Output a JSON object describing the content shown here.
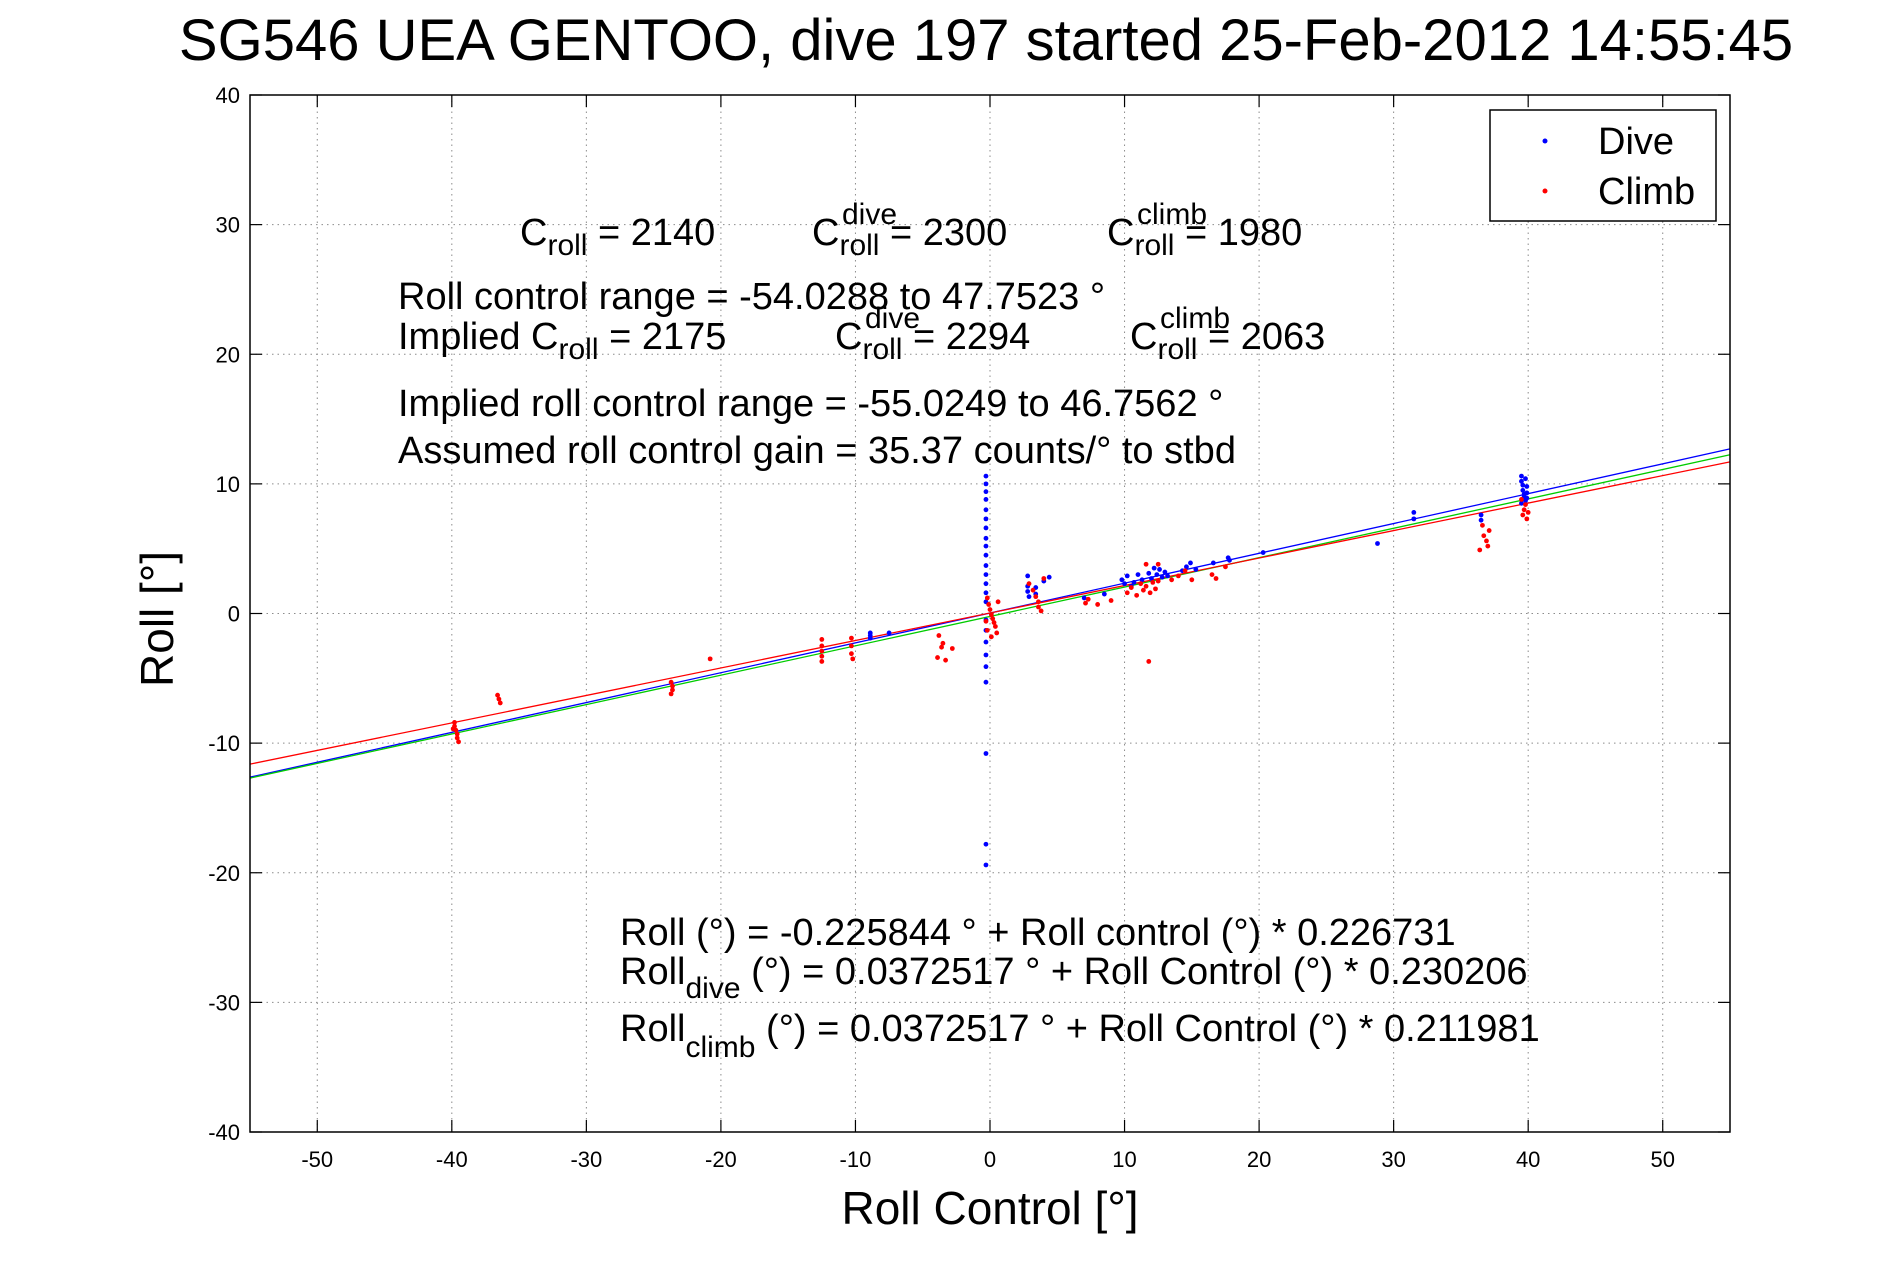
{
  "chart_data": {
    "type": "scatter",
    "title": "SG546 UEA GENTOO, dive 197 started 25-Feb-2012 14:55:45",
    "xlabel": "Roll Control [°]",
    "ylabel": "Roll [°]",
    "xlim": [
      -55,
      55
    ],
    "ylim": [
      -40,
      40
    ],
    "xticks": [
      -50,
      -40,
      -30,
      -20,
      -10,
      0,
      10,
      20,
      30,
      40,
      50
    ],
    "yticks": [
      -40,
      -30,
      -20,
      -10,
      0,
      10,
      20,
      30,
      40
    ],
    "grid": true,
    "legend": {
      "position": "top-right",
      "entries": [
        {
          "label": "Dive",
          "color": "#0000ff"
        },
        {
          "label": "Climb",
          "color": "#ff0000"
        }
      ]
    },
    "annotations": {
      "c_roll": {
        "base": "C",
        "sub": "roll",
        "rest": " = 2140"
      },
      "c_roll_dive": {
        "base": "C",
        "sub": "roll",
        "sup": "dive",
        "rest": " = 2300"
      },
      "c_roll_climb": {
        "base": "C",
        "sub": "roll",
        "sup": "climb",
        "rest": " = 1980"
      },
      "range": "Roll control range = -54.0288 to 47.7523 °",
      "implied_c_roll": {
        "base": "Implied C",
        "sub": "roll",
        "rest": " = 2175"
      },
      "implied_c_roll_dive": {
        "base": "C",
        "sub": "roll",
        "sup": "dive",
        "rest": " = 2294"
      },
      "implied_c_roll_climb": {
        "base": "C",
        "sub": "roll",
        "sup": "climb",
        "rest": " = 2063"
      },
      "implied_range": "Implied roll control range = -55.0249 to 46.7562 °",
      "gain": "Assumed roll control gain = 35.37 counts/° to stbd",
      "fit_all": "Roll (°) = -0.225844 ° + Roll control (°) * 0.226731",
      "fit_dive": {
        "base": "Roll",
        "sub": "dive",
        "rest": " (°) = 0.0372517 ° + Roll Control (°) * 0.230206"
      },
      "fit_climb": {
        "base": "Roll",
        "sub": "climb",
        "rest": " (°) = 0.0372517 ° + Roll Control (°) * 0.211981"
      }
    },
    "fit_lines": [
      {
        "name": "dive",
        "color": "#0000ff",
        "intercept": 0.0372517,
        "slope": 0.230206
      },
      {
        "name": "all",
        "color": "#00cc00",
        "intercept": -0.225844,
        "slope": 0.226731
      },
      {
        "name": "climb",
        "color": "#ff0000",
        "intercept": 0.0372517,
        "slope": 0.211981
      }
    ],
    "series": [
      {
        "name": "Dive",
        "color": "#0000ff",
        "points": [
          [
            -0.3,
            10.6
          ],
          [
            -0.3,
            10.0
          ],
          [
            -0.3,
            9.4
          ],
          [
            -0.3,
            8.8
          ],
          [
            -0.3,
            8.0
          ],
          [
            -0.3,
            7.3
          ],
          [
            -0.3,
            6.6
          ],
          [
            -0.3,
            5.8
          ],
          [
            -0.3,
            5.2
          ],
          [
            -0.3,
            4.5
          ],
          [
            -0.3,
            3.7
          ],
          [
            -0.3,
            3.0
          ],
          [
            -0.3,
            2.3
          ],
          [
            -0.3,
            1.6
          ],
          [
            -0.3,
            0.9
          ],
          [
            -0.3,
            -0.5
          ],
          [
            -0.3,
            -1.3
          ],
          [
            -0.3,
            -2.2
          ],
          [
            -0.3,
            -3.2
          ],
          [
            -0.3,
            -4.1
          ],
          [
            -0.3,
            -5.3
          ],
          [
            -0.3,
            -10.8
          ],
          [
            -0.3,
            -17.8
          ],
          [
            -0.3,
            -19.4
          ],
          [
            -8.9,
            -1.5
          ],
          [
            -8.9,
            -1.7
          ],
          [
            -8.9,
            -1.9
          ],
          [
            -7.5,
            -1.5
          ],
          [
            2.8,
            2.9
          ],
          [
            2.8,
            2.1
          ],
          [
            2.8,
            1.7
          ],
          [
            2.9,
            1.3
          ],
          [
            3.4,
            2.0
          ],
          [
            3.4,
            1.5
          ],
          [
            4.0,
            2.5
          ],
          [
            4.4,
            2.8
          ],
          [
            7.0,
            1.2
          ],
          [
            8.5,
            1.5
          ],
          [
            9.8,
            2.6
          ],
          [
            10.0,
            2.3
          ],
          [
            10.2,
            2.9
          ],
          [
            10.5,
            2.1
          ],
          [
            10.7,
            2.4
          ],
          [
            11.0,
            3.0
          ],
          [
            11.3,
            2.6
          ],
          [
            11.8,
            3.1
          ],
          [
            12.0,
            2.7
          ],
          [
            12.2,
            3.5
          ],
          [
            12.4,
            3.0
          ],
          [
            12.6,
            3.4
          ],
          [
            12.8,
            2.8
          ],
          [
            13.0,
            3.2
          ],
          [
            13.2,
            2.9
          ],
          [
            14.3,
            3.3
          ],
          [
            14.6,
            3.6
          ],
          [
            14.9,
            3.9
          ],
          [
            15.3,
            3.4
          ],
          [
            16.6,
            3.9
          ],
          [
            17.7,
            4.3
          ],
          [
            17.8,
            4.1
          ],
          [
            20.3,
            4.7
          ],
          [
            28.8,
            5.4
          ],
          [
            31.5,
            7.3
          ],
          [
            31.5,
            7.8
          ],
          [
            36.5,
            7.2
          ],
          [
            36.5,
            7.6
          ],
          [
            39.5,
            10.6
          ],
          [
            39.5,
            10.2
          ],
          [
            39.6,
            9.9
          ],
          [
            39.6,
            9.5
          ],
          [
            39.7,
            9.2
          ],
          [
            39.7,
            9.0
          ],
          [
            39.8,
            8.7
          ],
          [
            39.8,
            10.4
          ],
          [
            39.9,
            9.8
          ],
          [
            39.9,
            9.3
          ],
          [
            39.9,
            8.9
          ],
          [
            39.5,
            8.5
          ]
        ]
      },
      {
        "name": "Climb",
        "color": "#ff0000",
        "points": [
          [
            -39.8,
            -8.4
          ],
          [
            -39.8,
            -8.7
          ],
          [
            -39.7,
            -9.0
          ],
          [
            -39.6,
            -9.3
          ],
          [
            -39.6,
            -9.6
          ],
          [
            -39.5,
            -9.9
          ],
          [
            -39.9,
            -8.9
          ],
          [
            -36.6,
            -6.3
          ],
          [
            -36.5,
            -6.6
          ],
          [
            -36.4,
            -6.9
          ],
          [
            -23.7,
            -5.3
          ],
          [
            -23.6,
            -5.6
          ],
          [
            -23.6,
            -5.9
          ],
          [
            -23.7,
            -6.2
          ],
          [
            -20.8,
            -3.5
          ],
          [
            -12.5,
            -2.0
          ],
          [
            -12.5,
            -2.5
          ],
          [
            -12.5,
            -2.9
          ],
          [
            -12.5,
            -3.3
          ],
          [
            -12.5,
            -3.7
          ],
          [
            -10.3,
            -1.9
          ],
          [
            -10.3,
            -2.5
          ],
          [
            -10.3,
            -3.1
          ],
          [
            -10.2,
            -3.5
          ],
          [
            -3.8,
            -1.7
          ],
          [
            -3.5,
            -2.3
          ],
          [
            -3.9,
            -3.4
          ],
          [
            -3.3,
            -3.6
          ],
          [
            -2.8,
            -2.7
          ],
          [
            -3.6,
            -2.6
          ],
          [
            -0.2,
            1.2
          ],
          [
            -0.1,
            0.7
          ],
          [
            0.0,
            0.3
          ],
          [
            0.1,
            -0.1
          ],
          [
            0.2,
            -0.4
          ],
          [
            0.3,
            -0.7
          ],
          [
            0.4,
            -1.0
          ],
          [
            0.5,
            -1.5
          ],
          [
            0.6,
            0.9
          ],
          [
            -0.3,
            -0.6
          ],
          [
            -0.2,
            -1.3
          ],
          [
            0.1,
            -1.8
          ],
          [
            2.9,
            2.3
          ],
          [
            3.2,
            1.8
          ],
          [
            3.4,
            1.3
          ],
          [
            3.6,
            0.5
          ],
          [
            3.6,
            0.9
          ],
          [
            3.8,
            0.2
          ],
          [
            4.0,
            2.7
          ],
          [
            7.1,
            0.8
          ],
          [
            7.3,
            1.1
          ],
          [
            8.0,
            0.7
          ],
          [
            9.0,
            1.0
          ],
          [
            10.2,
            1.6
          ],
          [
            10.5,
            2.0
          ],
          [
            10.9,
            1.4
          ],
          [
            11.2,
            2.3
          ],
          [
            11.4,
            1.8
          ],
          [
            11.6,
            2.1
          ],
          [
            11.9,
            1.6
          ],
          [
            12.1,
            2.4
          ],
          [
            12.3,
            1.9
          ],
          [
            12.5,
            2.5
          ],
          [
            11.8,
            -3.7
          ],
          [
            11.6,
            3.8
          ],
          [
            12.5,
            3.8
          ],
          [
            13.5,
            2.6
          ],
          [
            14.0,
            2.9
          ],
          [
            14.5,
            3.3
          ],
          [
            15.0,
            2.6
          ],
          [
            16.5,
            3.0
          ],
          [
            16.8,
            2.7
          ],
          [
            17.5,
            3.6
          ],
          [
            36.7,
            6.0
          ],
          [
            36.9,
            5.6
          ],
          [
            37.0,
            5.2
          ],
          [
            36.4,
            4.9
          ],
          [
            37.1,
            6.4
          ],
          [
            36.6,
            6.8
          ],
          [
            39.6,
            7.6
          ],
          [
            39.7,
            8.0
          ],
          [
            39.8,
            8.4
          ],
          [
            39.9,
            7.3
          ],
          [
            40.0,
            7.8
          ],
          [
            39.5,
            8.8
          ]
        ]
      }
    ]
  }
}
